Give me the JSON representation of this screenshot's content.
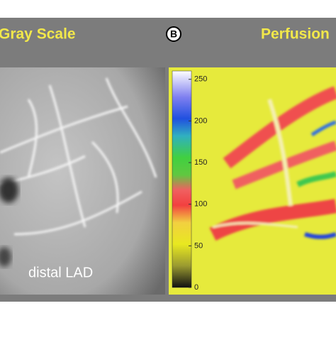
{
  "panel_header": {
    "left_title": "Gray Scale",
    "badge": "B",
    "right_title": "Perfusion"
  },
  "left_panel": {
    "annotation": "distal LAD"
  },
  "colorbar": {
    "ylim": [
      0,
      260
    ],
    "yticks": [
      0,
      50,
      100,
      150,
      200,
      250
    ]
  }
}
